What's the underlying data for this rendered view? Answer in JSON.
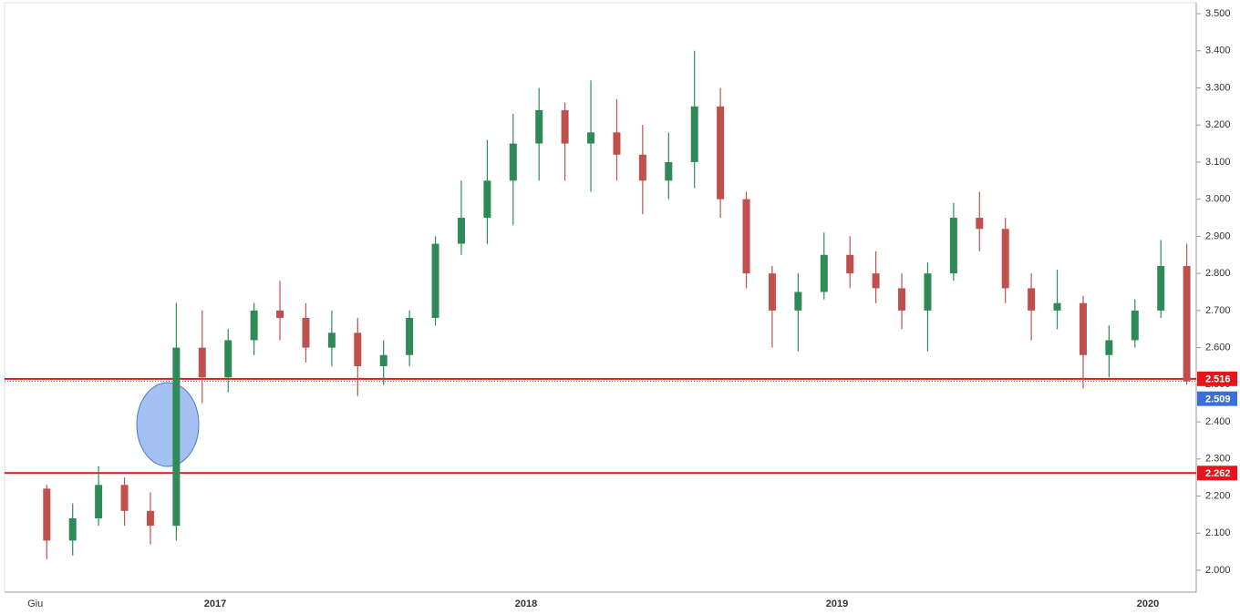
{
  "chart_data": {
    "type": "candlestick",
    "x": [
      "2016-06",
      "2016-07",
      "2016-08",
      "2016-09",
      "2016-10",
      "2016-11",
      "2016-12",
      "2017-01",
      "2017-02",
      "2017-03",
      "2017-04",
      "2017-05",
      "2017-06",
      "2017-07",
      "2017-08",
      "2017-09",
      "2017-10",
      "2017-11",
      "2017-12",
      "2018-01",
      "2018-02",
      "2018-03",
      "2018-04",
      "2018-05",
      "2018-06",
      "2018-07",
      "2018-08",
      "2018-09",
      "2018-10",
      "2018-11",
      "2018-12",
      "2019-01",
      "2019-02",
      "2019-03",
      "2019-04",
      "2019-05",
      "2019-06",
      "2019-07",
      "2019-08",
      "2019-09",
      "2019-10",
      "2019-11",
      "2019-12",
      "2020-01",
      "2020-02"
    ],
    "open": [
      2.22,
      2.08,
      2.14,
      2.23,
      2.16,
      2.12,
      2.6,
      2.52,
      2.62,
      2.7,
      2.68,
      2.6,
      2.64,
      2.55,
      2.58,
      2.68,
      2.88,
      2.95,
      3.05,
      3.15,
      3.24,
      3.15,
      3.18,
      3.12,
      3.05,
      3.1,
      3.25,
      3.0,
      2.8,
      2.7,
      2.75,
      2.85,
      2.8,
      2.76,
      2.7,
      2.8,
      2.95,
      2.92,
      2.76,
      2.7,
      2.72,
      2.58,
      2.62,
      2.7,
      2.82
    ],
    "high": [
      2.23,
      2.18,
      2.28,
      2.25,
      2.21,
      2.72,
      2.7,
      2.65,
      2.72,
      2.78,
      2.72,
      2.7,
      2.68,
      2.62,
      2.7,
      2.9,
      3.05,
      3.16,
      3.23,
      3.3,
      3.26,
      3.32,
      3.27,
      3.2,
      3.18,
      3.4,
      3.3,
      3.02,
      2.82,
      2.8,
      2.91,
      2.9,
      2.86,
      2.8,
      2.83,
      2.99,
      3.02,
      2.95,
      2.8,
      2.81,
      2.74,
      2.66,
      2.73,
      2.89,
      2.88
    ],
    "low": [
      2.03,
      2.04,
      2.12,
      2.12,
      2.07,
      2.08,
      2.45,
      2.48,
      2.58,
      2.62,
      2.56,
      2.55,
      2.47,
      2.5,
      2.55,
      2.66,
      2.85,
      2.88,
      2.93,
      3.05,
      3.05,
      3.02,
      3.05,
      2.96,
      3.0,
      3.03,
      2.95,
      2.76,
      2.6,
      2.59,
      2.73,
      2.76,
      2.72,
      2.65,
      2.59,
      2.78,
      2.86,
      2.72,
      2.62,
      2.65,
      2.49,
      2.52,
      2.6,
      2.68,
      2.5
    ],
    "close": [
      2.08,
      2.14,
      2.23,
      2.16,
      2.12,
      2.6,
      2.52,
      2.62,
      2.7,
      2.68,
      2.6,
      2.64,
      2.55,
      2.58,
      2.68,
      2.88,
      2.95,
      3.05,
      3.15,
      3.24,
      3.15,
      3.18,
      3.12,
      3.05,
      3.1,
      3.25,
      3.0,
      2.8,
      2.7,
      2.75,
      2.85,
      2.8,
      2.76,
      2.7,
      2.8,
      2.95,
      2.92,
      2.76,
      2.7,
      2.72,
      2.58,
      2.62,
      2.7,
      2.82,
      2.509
    ],
    "up_color": "#2e8b57",
    "down_color": "#c0504d",
    "ylim": [
      1.96,
      3.52
    ],
    "yticks": [
      {
        "value": 2.0,
        "label": "2.000"
      },
      {
        "value": 2.1,
        "label": "2.100"
      },
      {
        "value": 2.2,
        "label": "2.200"
      },
      {
        "value": 2.3,
        "label": "2.300"
      },
      {
        "value": 2.4,
        "label": "2.400"
      },
      {
        "value": 2.5,
        "label": "2.500"
      },
      {
        "value": 2.6,
        "label": "2.600"
      },
      {
        "value": 2.7,
        "label": "2.700"
      },
      {
        "value": 2.8,
        "label": "2.800"
      },
      {
        "value": 2.9,
        "label": "2.900"
      },
      {
        "value": 3.0,
        "label": "3.000"
      },
      {
        "value": 3.1,
        "label": "3.100"
      },
      {
        "value": 3.2,
        "label": "3.200"
      },
      {
        "value": 3.3,
        "label": "3.300"
      },
      {
        "value": 3.4,
        "label": "3.400"
      },
      {
        "value": 3.5,
        "label": "3.500"
      }
    ],
    "xticks": [
      {
        "value": "2016-06",
        "label": "Giu"
      },
      {
        "value": "2017-01",
        "label": "2017"
      },
      {
        "value": "2018-01",
        "label": "2018"
      },
      {
        "value": "2019-01",
        "label": "2019"
      },
      {
        "value": "2020-01",
        "label": "2020"
      }
    ],
    "hlines": [
      {
        "value": 2.516,
        "color": "#e8141b"
      },
      {
        "value": 2.262,
        "color": "#e8141b"
      }
    ],
    "last_price": {
      "value": 2.509,
      "color": "#3b6fd8"
    }
  }
}
